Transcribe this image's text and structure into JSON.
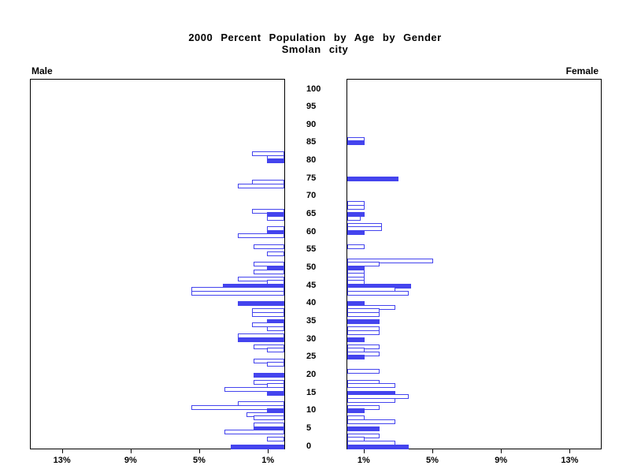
{
  "title": {
    "line1": "2000 Percent Population by Age by Gender",
    "line2": "Smolan city"
  },
  "colors": {
    "bar_blue": "#4444ee",
    "axis_black": "#000000",
    "background": "#ffffff"
  },
  "chart_data": {
    "type": "bar",
    "subtype": "population-pyramid",
    "title": "2000 Percent Population by Age by Gender",
    "subtitle": "Smolan city",
    "unit": "percent of population",
    "left_panel_label": "Male",
    "right_panel_label": "Female",
    "age_axis": {
      "min": 0,
      "max": 100,
      "label_step": 5,
      "bar_per_single_year": true
    },
    "pct_axis": {
      "ticks": [
        13,
        9,
        5,
        1
      ],
      "tick_suffix": "%",
      "max": 14.8
    },
    "legend_note": "solid blue bars mark ages at multiples of 5; outlined bars are other single years",
    "series": [
      {
        "name": "Male",
        "direction": "left",
        "points": [
          {
            "age": 82,
            "pct": 1.9,
            "solid": false
          },
          {
            "age": 81,
            "pct": 1.0,
            "solid": false
          },
          {
            "age": 80,
            "pct": 1.0,
            "solid": true
          },
          {
            "age": 74,
            "pct": 1.9,
            "solid": false
          },
          {
            "age": 73,
            "pct": 2.7,
            "solid": false
          },
          {
            "age": 66,
            "pct": 1.9,
            "solid": false
          },
          {
            "age": 65,
            "pct": 1.0,
            "solid": true
          },
          {
            "age": 64,
            "pct": 1.0,
            "solid": false
          },
          {
            "age": 61,
            "pct": 1.0,
            "solid": false
          },
          {
            "age": 60,
            "pct": 1.0,
            "solid": true
          },
          {
            "age": 59,
            "pct": 2.7,
            "solid": false
          },
          {
            "age": 56,
            "pct": 1.8,
            "solid": false
          },
          {
            "age": 54,
            "pct": 1.0,
            "solid": false
          },
          {
            "age": 51,
            "pct": 1.8,
            "solid": false
          },
          {
            "age": 50,
            "pct": 1.0,
            "solid": true
          },
          {
            "age": 49,
            "pct": 1.8,
            "solid": false
          },
          {
            "age": 47,
            "pct": 2.7,
            "solid": false
          },
          {
            "age": 46,
            "pct": 1.0,
            "solid": false
          },
          {
            "age": 45,
            "pct": 3.6,
            "solid": true
          },
          {
            "age": 44,
            "pct": 5.4,
            "solid": false
          },
          {
            "age": 43,
            "pct": 5.4,
            "solid": false
          },
          {
            "age": 40,
            "pct": 2.7,
            "solid": true
          },
          {
            "age": 38,
            "pct": 1.9,
            "solid": false
          },
          {
            "age": 37,
            "pct": 1.9,
            "solid": false
          },
          {
            "age": 35,
            "pct": 1.0,
            "solid": true
          },
          {
            "age": 34,
            "pct": 1.9,
            "solid": false
          },
          {
            "age": 33,
            "pct": 1.0,
            "solid": false
          },
          {
            "age": 31,
            "pct": 2.7,
            "solid": false
          },
          {
            "age": 30,
            "pct": 2.7,
            "solid": true
          },
          {
            "age": 28,
            "pct": 1.8,
            "solid": false
          },
          {
            "age": 27,
            "pct": 1.0,
            "solid": false
          },
          {
            "age": 24,
            "pct": 1.8,
            "solid": false
          },
          {
            "age": 23,
            "pct": 1.0,
            "solid": false
          },
          {
            "age": 20,
            "pct": 1.8,
            "solid": true
          },
          {
            "age": 18,
            "pct": 1.8,
            "solid": false
          },
          {
            "age": 17,
            "pct": 1.0,
            "solid": false
          },
          {
            "age": 16,
            "pct": 3.5,
            "solid": false
          },
          {
            "age": 15,
            "pct": 1.0,
            "solid": true
          },
          {
            "age": 12,
            "pct": 2.7,
            "solid": false
          },
          {
            "age": 11,
            "pct": 5.4,
            "solid": false
          },
          {
            "age": 10,
            "pct": 1.0,
            "solid": true
          },
          {
            "age": 9,
            "pct": 2.2,
            "solid": false
          },
          {
            "age": 8,
            "pct": 1.8,
            "solid": false
          },
          {
            "age": 6,
            "pct": 1.8,
            "solid": false
          },
          {
            "age": 5,
            "pct": 1.8,
            "solid": true
          },
          {
            "age": 4,
            "pct": 3.5,
            "solid": false
          },
          {
            "age": 2,
            "pct": 1.0,
            "solid": false
          },
          {
            "age": 0,
            "pct": 3.1,
            "solid": true
          }
        ]
      },
      {
        "name": "Female",
        "direction": "right",
        "points": [
          {
            "age": 86,
            "pct": 1.0,
            "solid": false
          },
          {
            "age": 85,
            "pct": 1.0,
            "solid": true
          },
          {
            "age": 75,
            "pct": 3.0,
            "solid": true
          },
          {
            "age": 68,
            "pct": 1.0,
            "solid": false
          },
          {
            "age": 67,
            "pct": 1.0,
            "solid": false
          },
          {
            "age": 65,
            "pct": 1.0,
            "solid": true
          },
          {
            "age": 64,
            "pct": 0.8,
            "solid": false
          },
          {
            "age": 62,
            "pct": 2.0,
            "solid": false
          },
          {
            "age": 61,
            "pct": 2.0,
            "solid": false
          },
          {
            "age": 60,
            "pct": 1.0,
            "solid": true
          },
          {
            "age": 56,
            "pct": 1.0,
            "solid": false
          },
          {
            "age": 52,
            "pct": 5.0,
            "solid": false
          },
          {
            "age": 51,
            "pct": 1.9,
            "solid": false
          },
          {
            "age": 50,
            "pct": 1.0,
            "solid": true
          },
          {
            "age": 49,
            "pct": 1.0,
            "solid": false
          },
          {
            "age": 48,
            "pct": 1.0,
            "solid": false
          },
          {
            "age": 47,
            "pct": 1.0,
            "solid": false
          },
          {
            "age": 46,
            "pct": 1.0,
            "solid": false
          },
          {
            "age": 45,
            "pct": 3.7,
            "solid": true
          },
          {
            "age": 44,
            "pct": 2.8,
            "solid": false
          },
          {
            "age": 43,
            "pct": 3.6,
            "solid": false
          },
          {
            "age": 40,
            "pct": 1.0,
            "solid": true
          },
          {
            "age": 39,
            "pct": 2.8,
            "solid": false
          },
          {
            "age": 38,
            "pct": 1.9,
            "solid": false
          },
          {
            "age": 37,
            "pct": 1.9,
            "solid": false
          },
          {
            "age": 35,
            "pct": 1.9,
            "solid": true
          },
          {
            "age": 33,
            "pct": 1.9,
            "solid": false
          },
          {
            "age": 32,
            "pct": 1.9,
            "solid": false
          },
          {
            "age": 30,
            "pct": 1.0,
            "solid": true
          },
          {
            "age": 28,
            "pct": 1.9,
            "solid": false
          },
          {
            "age": 27,
            "pct": 1.0,
            "solid": false
          },
          {
            "age": 26,
            "pct": 1.9,
            "solid": false
          },
          {
            "age": 25,
            "pct": 1.0,
            "solid": true
          },
          {
            "age": 21,
            "pct": 1.9,
            "solid": false
          },
          {
            "age": 18,
            "pct": 1.9,
            "solid": false
          },
          {
            "age": 17,
            "pct": 2.8,
            "solid": false
          },
          {
            "age": 15,
            "pct": 2.8,
            "solid": true
          },
          {
            "age": 14,
            "pct": 3.6,
            "solid": false
          },
          {
            "age": 13,
            "pct": 2.8,
            "solid": false
          },
          {
            "age": 11,
            "pct": 1.9,
            "solid": false
          },
          {
            "age": 10,
            "pct": 1.0,
            "solid": true
          },
          {
            "age": 8,
            "pct": 1.0,
            "solid": false
          },
          {
            "age": 7,
            "pct": 2.8,
            "solid": false
          },
          {
            "age": 5,
            "pct": 1.9,
            "solid": true
          },
          {
            "age": 3,
            "pct": 1.9,
            "solid": false
          },
          {
            "age": 2,
            "pct": 1.0,
            "solid": false
          },
          {
            "age": 1,
            "pct": 2.8,
            "solid": false
          },
          {
            "age": 0,
            "pct": 3.6,
            "solid": true
          }
        ]
      }
    ]
  }
}
